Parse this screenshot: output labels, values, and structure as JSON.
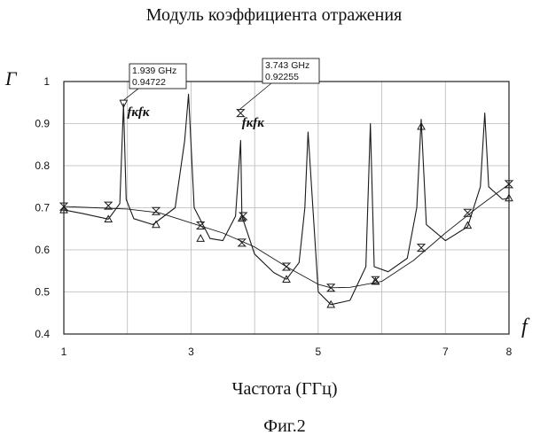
{
  "title": "Модуль коэффициента отражения",
  "figure_caption": "Фиг.2",
  "chart_data": {
    "type": "line",
    "title": "Модуль коэффициента отражения",
    "xlabel": "Частота (ГГц)",
    "ylabel": "Г",
    "x_axis_symbol": "f",
    "xlim": [
      1,
      8
    ],
    "ylim": [
      0.4,
      1.0
    ],
    "xticks": [
      1,
      3,
      5,
      7,
      8
    ],
    "yticks": [
      0.4,
      0.5,
      0.6,
      0.7,
      0.8,
      0.9,
      1
    ],
    "ytick_labels": [
      "0.4",
      "0.5",
      "0.6",
      "0.7",
      "0.8",
      "0.9",
      "1"
    ],
    "grid": true,
    "legend": "none",
    "series": [
      {
        "marker": "triangle-up",
        "x": [
          1.0,
          1.3,
          1.7,
          1.88,
          1.939,
          1.98,
          2.1,
          2.4,
          2.75,
          2.9,
          2.96,
          3.05,
          3.3,
          3.5,
          3.7,
          3.78,
          3.8,
          4.0,
          4.3,
          4.5,
          4.7,
          4.79,
          4.84,
          5.0,
          5.2,
          5.5,
          5.75,
          5.82,
          5.88,
          6.1,
          6.4,
          6.55,
          6.62,
          6.7,
          7.0,
          7.35,
          7.55,
          7.62,
          7.68,
          7.9,
          8.0
        ],
        "y": [
          0.695,
          0.686,
          0.673,
          0.71,
          0.947,
          0.72,
          0.674,
          0.66,
          0.7,
          0.86,
          0.97,
          0.7,
          0.627,
          0.622,
          0.68,
          0.86,
          0.68,
          0.59,
          0.546,
          0.53,
          0.57,
          0.7,
          0.88,
          0.5,
          0.47,
          0.48,
          0.56,
          0.9,
          0.56,
          0.548,
          0.58,
          0.7,
          0.91,
          0.66,
          0.622,
          0.655,
          0.75,
          0.925,
          0.75,
          0.72,
          0.723
        ]
      },
      {
        "marker": "hourglass",
        "x": [
          1.0,
          1.5,
          2.0,
          2.5,
          3.0,
          3.5,
          4.0,
          4.5,
          5.0,
          5.2,
          5.5,
          6.0,
          6.5,
          7.0,
          7.5,
          8.0
        ],
        "y": [
          0.703,
          0.7,
          0.697,
          0.688,
          0.664,
          0.64,
          0.607,
          0.56,
          0.518,
          0.51,
          0.511,
          0.525,
          0.575,
          0.64,
          0.7,
          0.756
        ]
      }
    ],
    "markers": {
      "triangle_up": [
        [
          1.0,
          0.695
        ],
        [
          1.7,
          0.673
        ],
        [
          2.45,
          0.66
        ],
        [
          3.15,
          0.627
        ],
        [
          3.8,
          0.675
        ],
        [
          4.5,
          0.53
        ],
        [
          5.2,
          0.47
        ],
        [
          5.9,
          0.525
        ],
        [
          6.62,
          0.893
        ],
        [
          7.35,
          0.658
        ],
        [
          8.0,
          0.723
        ]
      ],
      "hourglass": [
        [
          1.0,
          0.703
        ],
        [
          1.7,
          0.705
        ],
        [
          2.45,
          0.692
        ],
        [
          3.15,
          0.658
        ],
        [
          3.78,
          0.925
        ],
        [
          3.82,
          0.68
        ],
        [
          3.8,
          0.617
        ],
        [
          4.5,
          0.56
        ],
        [
          5.2,
          0.51
        ],
        [
          5.9,
          0.528
        ],
        [
          6.62,
          0.605
        ],
        [
          7.35,
          0.688
        ],
        [
          8.0,
          0.756
        ]
      ],
      "peak_triangle_down": [
        [
          1.939,
          0.947
        ]
      ]
    },
    "annotations": [
      {
        "x": 1.939,
        "y": 0.947,
        "line1": "1.939 GHz",
        "line2": "0.94722",
        "handwritten": "fкfк"
      },
      {
        "x": 3.743,
        "y": 0.92255,
        "line1": "3.743 GHz",
        "line2": "0.92255",
        "handwritten": "fкfк"
      }
    ]
  },
  "colors": {
    "line": "#1a1a1a",
    "grid": "#b8b8b8",
    "frame": "#222222"
  }
}
